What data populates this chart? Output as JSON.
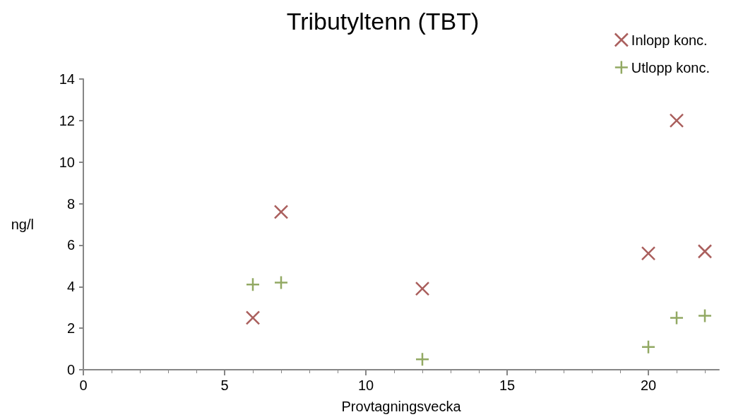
{
  "chart_data": {
    "type": "scatter",
    "title": "Tributyltenn (TBT)",
    "xlabel": "Provtagningsvecka",
    "ylabel": "ng/l",
    "series": [
      {
        "name": "Inlopp konc.",
        "color": "#953735",
        "marker": "cross",
        "x": [
          6,
          7,
          12,
          20,
          21,
          22
        ],
        "values": [
          2.5,
          7.6,
          3.9,
          5.6,
          12,
          5.7
        ]
      },
      {
        "name": "Utlopp konc.",
        "color": "#77933c",
        "marker": "plus",
        "x": [
          6,
          7,
          12,
          20,
          21,
          22
        ],
        "values": [
          4.1,
          4.2,
          0.5,
          1.1,
          2.5,
          2.6
        ]
      }
    ],
    "xlim": [
      0,
      22.5
    ],
    "xticks": [
      0,
      5,
      10,
      15,
      20
    ],
    "ylim": [
      0,
      14
    ],
    "yticks": [
      0,
      2,
      4,
      6,
      8,
      10,
      12,
      14
    ],
    "grid": false,
    "legend": "top right"
  }
}
